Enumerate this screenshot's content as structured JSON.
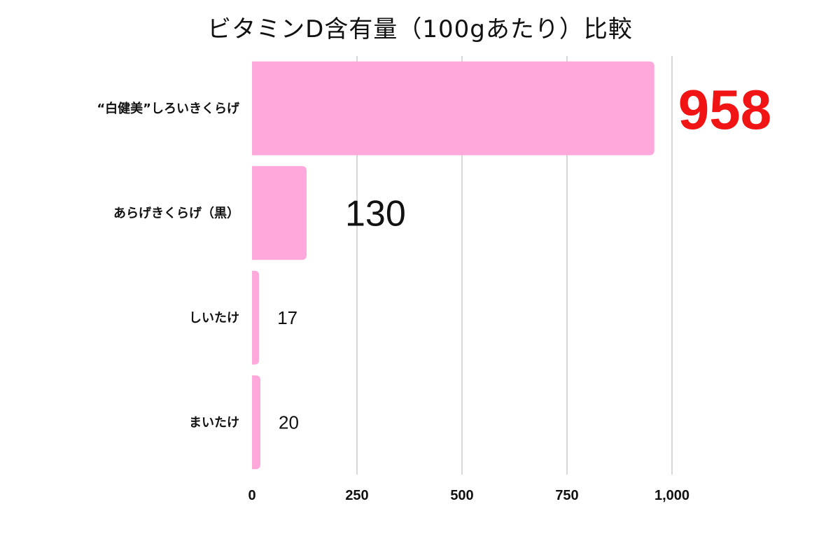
{
  "title": "ビタミンD含有量（100gあたり）比較",
  "colors": {
    "bar": "#ffa8dc",
    "grid": "#cccccc",
    "highlight_label": "#f01414",
    "text": "#111111"
  },
  "chart_data": {
    "type": "bar",
    "orientation": "horizontal",
    "title": "ビタミンD含有量（100gあたり）比較",
    "categories": [
      "“白健美”しろいきくらげ",
      "あらげきくらげ（黒）",
      "しいたけ",
      "まいたけ"
    ],
    "values": [
      958,
      130,
      17,
      20
    ],
    "data_labels": [
      "958",
      "130",
      "17",
      "20"
    ],
    "highlighted_index": 0,
    "xlim": [
      0,
      1000
    ],
    "xticks": [
      0,
      250,
      500,
      750,
      1000
    ],
    "xtick_labels": [
      "0",
      "250",
      "500",
      "750",
      "1,000"
    ],
    "grid": true,
    "legend": "none",
    "xlabel": "",
    "ylabel": ""
  }
}
